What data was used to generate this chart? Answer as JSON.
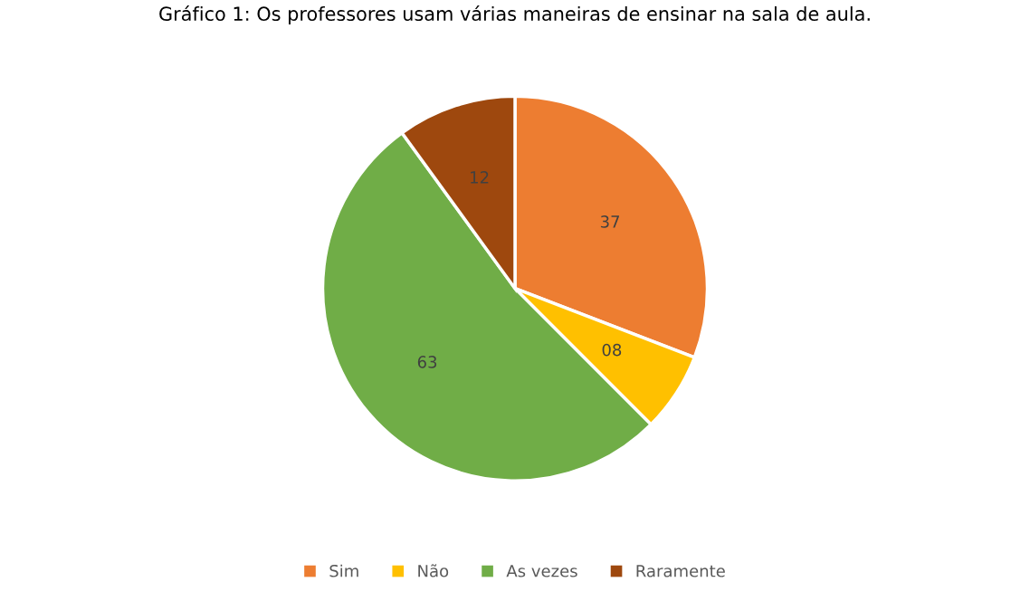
{
  "chart_data": {
    "type": "pie",
    "title": "Gráfico 1: Os professores usam várias maneiras de ensinar na sala de aula.",
    "categories": [
      "Sim",
      "Não",
      "As vezes",
      "Raramente"
    ],
    "values": [
      37,
      8,
      63,
      12
    ],
    "value_labels": [
      "37",
      "08",
      "63",
      "12"
    ],
    "colors": [
      "#ed7d31",
      "#ffc000",
      "#70ad47",
      "#9e480e"
    ],
    "legend": "bottom"
  }
}
